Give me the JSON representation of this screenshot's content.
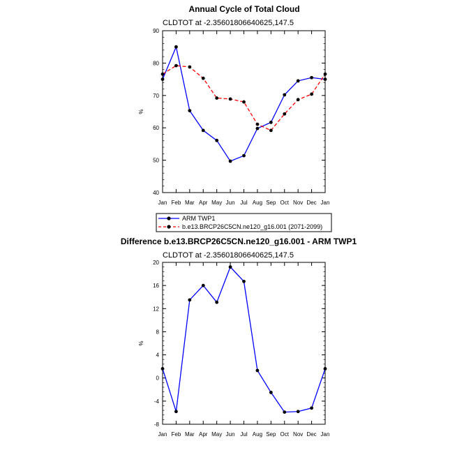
{
  "chart_data": [
    {
      "type": "line",
      "title": "Annual Cycle of Total Cloud",
      "subtitle": "CLDTOT at -2.35601806640625,147.5",
      "ylabel": "%",
      "xlabel": "",
      "categories": [
        "Jan",
        "Feb",
        "Mar",
        "Apr",
        "May",
        "Jun",
        "Jul",
        "Aug",
        "Sep",
        "Oct",
        "Nov",
        "Dec",
        "Jan"
      ],
      "ylim": [
        40,
        90
      ],
      "yticks": [
        40,
        50,
        60,
        70,
        80,
        90
      ],
      "yticks_labels": [
        "40",
        "50",
        "60",
        "70",
        "80",
        "90"
      ],
      "grid": false,
      "legend_position": "below",
      "series": [
        {
          "name": "ARM TWP1",
          "color": "#0000ff",
          "style": "solid",
          "values": [
            75.0,
            85.0,
            65.3,
            59.2,
            56.1,
            49.7,
            51.4,
            59.8,
            61.7,
            70.2,
            74.5,
            75.5,
            75.0
          ]
        },
        {
          "name": "b.e13.BRCP26C5CN.ne120_g16.001 (2071-2099)",
          "color": "#ff0000",
          "style": "dashed",
          "values": [
            76.6,
            79.2,
            78.8,
            75.3,
            69.2,
            68.9,
            68.0,
            61.1,
            59.2,
            64.3,
            68.7,
            70.4,
            76.6
          ]
        }
      ]
    },
    {
      "type": "line",
      "title": "Difference b.e13.BRCP26C5CN.ne120_g16.001 - ARM TWP1",
      "subtitle": "CLDTOT at -2.35601806640625,147.5",
      "ylabel": "%",
      "xlabel": "",
      "categories": [
        "Jan",
        "Feb",
        "Mar",
        "Apr",
        "May",
        "Jun",
        "Jul",
        "Aug",
        "Sep",
        "Oct",
        "Nov",
        "Dec",
        "Jan"
      ],
      "ylim": [
        -8,
        20
      ],
      "yticks": [
        -8,
        -4,
        0,
        4,
        8,
        12,
        16,
        20
      ],
      "yticks_labels": [
        "-8",
        "-4",
        "0",
        "4",
        "8",
        "12",
        "16",
        "20"
      ],
      "grid": false,
      "series": [
        {
          "color": "#0000ff",
          "style": "solid",
          "values": [
            1.6,
            -5.8,
            13.5,
            16.0,
            13.1,
            19.2,
            16.7,
            1.3,
            -2.5,
            -5.9,
            -5.8,
            -5.2,
            1.6
          ]
        }
      ]
    }
  ]
}
